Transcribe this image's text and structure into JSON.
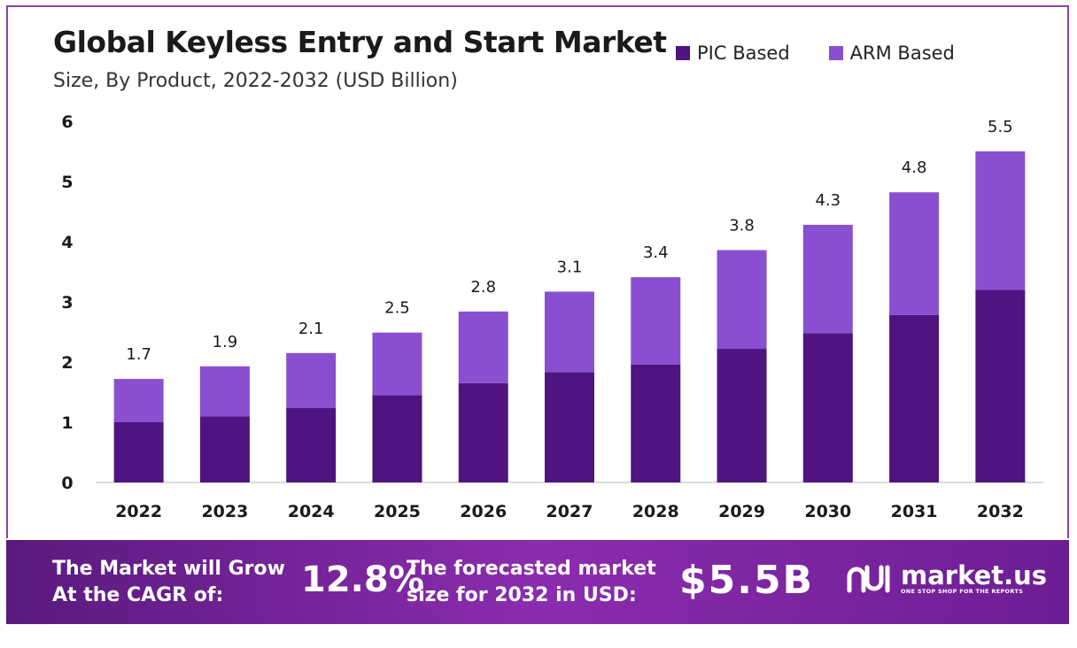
{
  "header": {
    "title": "Global Keyless Entry and Start Market",
    "subtitle": "Size, By Product, 2022-2032 (USD Billion)"
  },
  "colors": {
    "pic": "#4f1480",
    "arm": "#8a4fd0",
    "footer": "#7a26a0"
  },
  "chart_data": {
    "type": "bar",
    "stacked": true,
    "categories": [
      "2022",
      "2023",
      "2024",
      "2025",
      "2026",
      "2027",
      "2028",
      "2029",
      "2030",
      "2031",
      "2032"
    ],
    "series": [
      {
        "name": "PIC Based",
        "values": [
          1.0,
          1.1,
          1.24,
          1.45,
          1.65,
          1.83,
          1.96,
          2.22,
          2.48,
          2.78,
          3.2
        ]
      },
      {
        "name": "ARM Based",
        "values": [
          0.72,
          0.83,
          0.91,
          1.04,
          1.19,
          1.34,
          1.45,
          1.64,
          1.8,
          2.04,
          2.3
        ]
      }
    ],
    "totals": [
      "1.7",
      "1.9",
      "2.1",
      "2.5",
      "2.8",
      "3.1",
      "3.4",
      "3.8",
      "4.3",
      "4.8",
      "5.5"
    ],
    "y_ticks": [
      "0",
      "1",
      "2",
      "3",
      "4",
      "5",
      "6"
    ],
    "ylim": [
      0,
      6
    ],
    "grid": false,
    "legend_position": "top-right"
  },
  "footer": {
    "cagr_label": "The Market will Grow At the CAGR of:",
    "cagr_value": "12.8%",
    "size_label": "The forecasted market size for 2032 in USD:",
    "size_value": "$5.5B",
    "brand_name": "market.us",
    "brand_tagline": "ONE STOP SHOP FOR THE REPORTS"
  }
}
